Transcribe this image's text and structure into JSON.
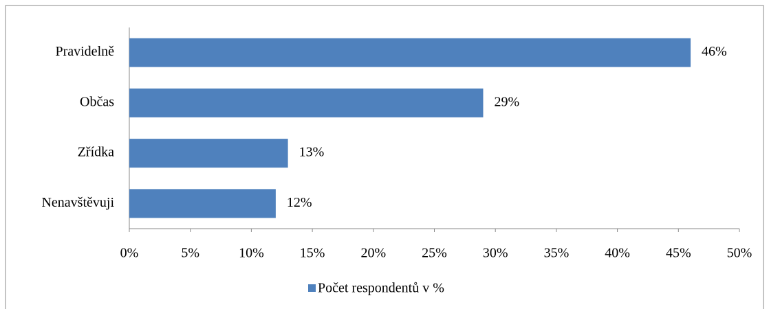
{
  "chart_data": {
    "type": "barh",
    "categories": [
      "Pravidelně",
      "Občas",
      "Zřídka",
      "Nenavštěvuji"
    ],
    "series": [
      {
        "name": "Počet respondentů v %",
        "color": "#4f81bd",
        "values": [
          46,
          29,
          13,
          12
        ],
        "value_labels": [
          "46%",
          "29%",
          "13%",
          "12%"
        ]
      }
    ],
    "xlim": [
      0,
      50
    ],
    "xticks": [
      {
        "value": 0,
        "label": "0%"
      },
      {
        "value": 5,
        "label": "5%"
      },
      {
        "value": 10,
        "label": "10%"
      },
      {
        "value": 15,
        "label": "15%"
      },
      {
        "value": 20,
        "label": "20%"
      },
      {
        "value": 25,
        "label": "25%"
      },
      {
        "value": 30,
        "label": "30%"
      },
      {
        "value": 35,
        "label": "35%"
      },
      {
        "value": 40,
        "label": "40%"
      },
      {
        "value": 45,
        "label": "45%"
      },
      {
        "value": 50,
        "label": "50%"
      }
    ],
    "legend": "bottom"
  }
}
